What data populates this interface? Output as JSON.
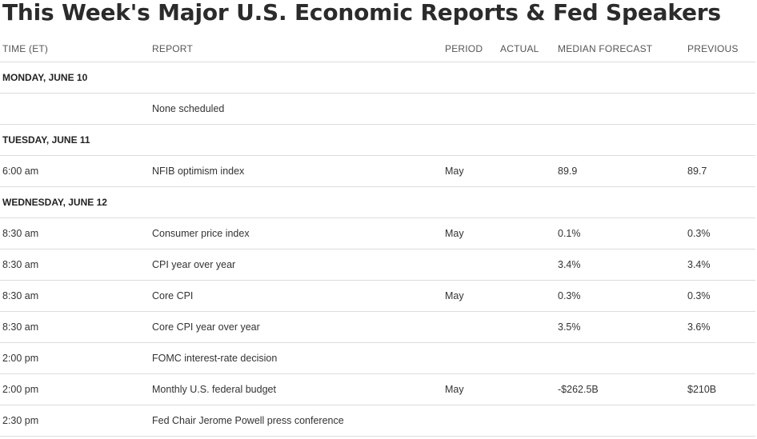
{
  "page": {
    "title": "This Week's Major U.S. Economic Reports & Fed Speakers"
  },
  "table": {
    "headers": {
      "time": "TIME (ET)",
      "report": "REPORT",
      "period": "PERIOD",
      "actual": "ACTUAL",
      "median": "MEDIAN FORECAST",
      "previous": "PREVIOUS"
    },
    "days": [
      {
        "label": "MONDAY, JUNE 10",
        "rows": [
          {
            "time": "",
            "report": "None scheduled",
            "period": "",
            "actual": "",
            "median": "",
            "previous": ""
          }
        ]
      },
      {
        "label": "TUESDAY, JUNE 11",
        "rows": [
          {
            "time": "6:00 am",
            "report": "NFIB optimism index",
            "period": "May",
            "actual": "",
            "median": "89.9",
            "previous": "89.7"
          }
        ]
      },
      {
        "label": "WEDNESDAY, JUNE 12",
        "rows": [
          {
            "time": "8:30 am",
            "report": "Consumer price index",
            "period": "May",
            "actual": "",
            "median": "0.1%",
            "previous": "0.3%"
          },
          {
            "time": "8:30 am",
            "report": "CPI year over year",
            "period": "",
            "actual": "",
            "median": "3.4%",
            "previous": "3.4%"
          },
          {
            "time": "8:30 am",
            "report": "Core CPI",
            "period": "May",
            "actual": "",
            "median": "0.3%",
            "previous": "0.3%"
          },
          {
            "time": "8:30 am",
            "report": "Core CPI year over year",
            "period": "",
            "actual": "",
            "median": "3.5%",
            "previous": "3.6%"
          },
          {
            "time": "2:00 pm",
            "report": "FOMC interest-rate decision",
            "period": "",
            "actual": "",
            "median": "",
            "previous": ""
          },
          {
            "time": "2:00 pm",
            "report": "Monthly U.S. federal budget",
            "period": "May",
            "actual": "",
            "median": "-$262.5B",
            "previous": "$210B"
          },
          {
            "time": "2:30 pm",
            "report": "Fed Chair Jerome Powell press conference",
            "period": "",
            "actual": "",
            "median": "",
            "previous": ""
          }
        ]
      }
    ]
  }
}
